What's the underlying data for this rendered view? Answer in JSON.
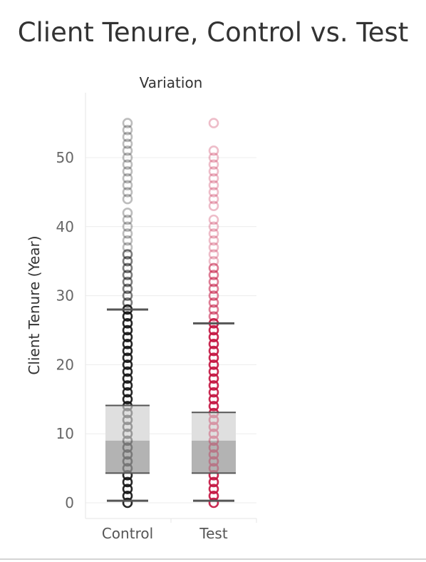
{
  "chart_data": {
    "type": "box",
    "title": "Client Tenure, Control vs. Test",
    "column_header": "Variation",
    "ylabel": "Client Tenure (Year)",
    "xlabel": "",
    "ylim": [
      -1.5,
      58
    ],
    "yticks": [
      0,
      10,
      20,
      30,
      40,
      50
    ],
    "grid": true,
    "categories": [
      "Control",
      "Test"
    ],
    "series": [
      {
        "category": "Control",
        "color": "#111111",
        "whisker_low": 0.3,
        "q1": 4.3,
        "median": 9.0,
        "q3": 14.1,
        "whisker_high": 28.0,
        "points": [
          0,
          1,
          2,
          3,
          4,
          5,
          6,
          7,
          8,
          9,
          10,
          11,
          12,
          13,
          14,
          15,
          16,
          17,
          18,
          19,
          20,
          21,
          22,
          23,
          24,
          25,
          26,
          27,
          28,
          29,
          30,
          31,
          32,
          33,
          34,
          35,
          36,
          37,
          38,
          39,
          40,
          41,
          42,
          44,
          45,
          46,
          47,
          48,
          49,
          50,
          51,
          52,
          53,
          54,
          55
        ]
      },
      {
        "category": "Test",
        "color": "#c3123e",
        "whisker_low": 0.3,
        "q1": 4.3,
        "median": 9.0,
        "q3": 13.1,
        "whisker_high": 26.0,
        "points": [
          0,
          1,
          2,
          3,
          4,
          5,
          6,
          7,
          8,
          9,
          10,
          11,
          12,
          13,
          14,
          15,
          16,
          17,
          18,
          19,
          20,
          21,
          22,
          23,
          24,
          25,
          26,
          27,
          28,
          29,
          30,
          31,
          32,
          33,
          34,
          35,
          36,
          37,
          38,
          39,
          40,
          41,
          43,
          44,
          45,
          46,
          47,
          48,
          49,
          50,
          51,
          55
        ]
      }
    ]
  }
}
